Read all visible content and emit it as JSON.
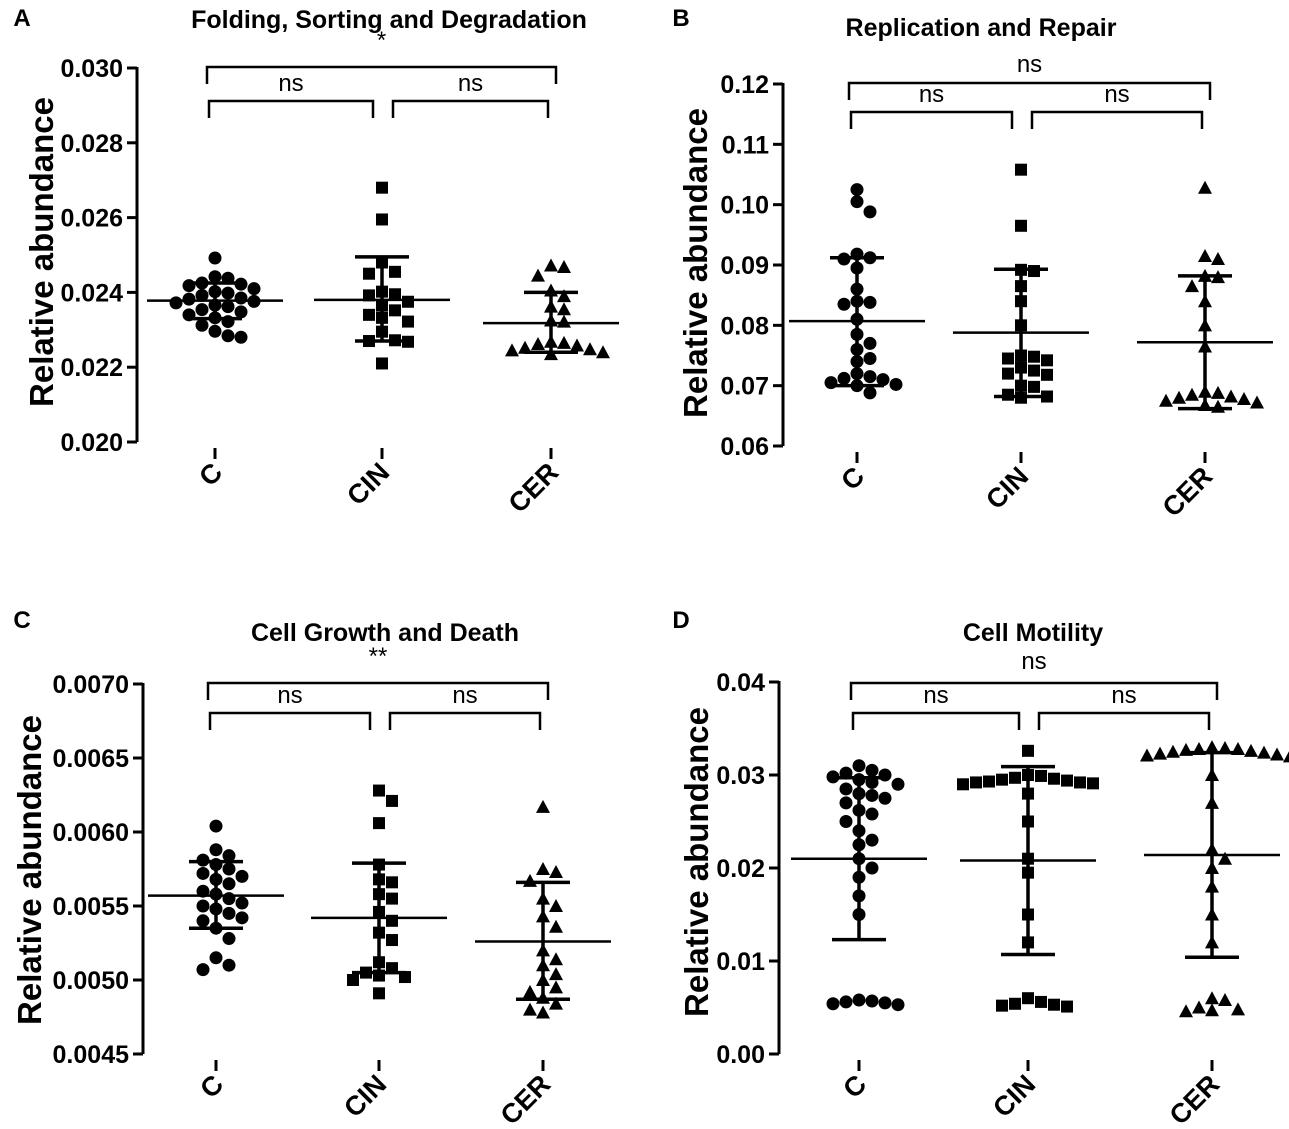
{
  "figure": {
    "panel_letters": [
      "A",
      "B",
      "C",
      "D"
    ]
  },
  "chart_data": [
    {
      "panel": "A",
      "type": "scatter",
      "title": "Folding, Sorting and Degradation",
      "xlabel": "",
      "ylabel": "Relative abundance",
      "categories": [
        "C",
        "CIN",
        "CER"
      ],
      "markers": [
        "circle",
        "square",
        "triangle"
      ],
      "ylim": [
        0.02,
        0.03
      ],
      "yticks": [
        0.02,
        0.022,
        0.024,
        0.026,
        0.028,
        0.03
      ],
      "ytick_labels": [
        "0.020",
        "0.022",
        "0.024",
        "0.026",
        "0.028",
        "0.030"
      ],
      "series": [
        {
          "name": "C",
          "mean": 0.02378,
          "sd_low": 0.0233,
          "sd_high": 0.02425,
          "values": [
            0.02492,
            0.02442,
            0.02438,
            0.02425,
            0.02422,
            0.02418,
            0.0241,
            0.02402,
            0.02398,
            0.02392,
            0.02385,
            0.02382,
            0.02376,
            0.02372,
            0.02366,
            0.02362,
            0.02354,
            0.02348,
            0.0234,
            0.02332,
            0.02322,
            0.02312,
            0.02296,
            0.02284,
            0.0228
          ]
        },
        {
          "name": "CIN",
          "mean": 0.0238,
          "sd_low": 0.0227,
          "sd_high": 0.02495,
          "values": [
            0.0268,
            0.02595,
            0.0248,
            0.02455,
            0.0245,
            0.02402,
            0.02395,
            0.02392,
            0.02375,
            0.02365,
            0.02352,
            0.0234,
            0.02332,
            0.02322,
            0.02295,
            0.02272,
            0.0227,
            0.02268,
            0.0221
          ]
        },
        {
          "name": "CER",
          "mean": 0.02318,
          "sd_low": 0.0224,
          "sd_high": 0.024,
          "values": [
            0.02472,
            0.02468,
            0.02445,
            0.02405,
            0.0239,
            0.02362,
            0.02355,
            0.02325,
            0.02322,
            0.02268,
            0.02265,
            0.02262,
            0.02258,
            0.02252,
            0.02248,
            0.02245,
            0.0224,
            0.02235
          ]
        }
      ],
      "comparisons": [
        {
          "from": "C",
          "to": "CIN",
          "label": "ns"
        },
        {
          "from": "CIN",
          "to": "CER",
          "label": "ns"
        },
        {
          "from": "C",
          "to": "CER",
          "label": "*"
        }
      ]
    },
    {
      "panel": "B",
      "type": "scatter",
      "title": "Replication and Repair",
      "xlabel": "",
      "ylabel": "Relative abundance",
      "categories": [
        "C",
        "CIN",
        "CER"
      ],
      "markers": [
        "circle",
        "square",
        "triangle"
      ],
      "ylim": [
        0.06,
        0.12
      ],
      "yticks": [
        0.06,
        0.07,
        0.08,
        0.09,
        0.1,
        0.11,
        0.12
      ],
      "ytick_labels": [
        "0.06",
        "0.07",
        "0.08",
        "0.09",
        "0.10",
        "0.11",
        "0.12"
      ],
      "series": [
        {
          "name": "C",
          "mean": 0.0807,
          "sd_low": 0.07,
          "sd_high": 0.0912,
          "values": [
            0.1025,
            0.1005,
            0.0988,
            0.0918,
            0.0912,
            0.091,
            0.0895,
            0.086,
            0.084,
            0.0838,
            0.0835,
            0.081,
            0.0785,
            0.077,
            0.076,
            0.0745,
            0.074,
            0.072,
            0.0715,
            0.0712,
            0.071,
            0.0705,
            0.0702,
            0.07,
            0.0688
          ]
        },
        {
          "name": "CIN",
          "mean": 0.0788,
          "sd_low": 0.0682,
          "sd_high": 0.0893,
          "values": [
            0.1058,
            0.0965,
            0.0892,
            0.089,
            0.0865,
            0.084,
            0.08,
            0.075,
            0.0748,
            0.0745,
            0.0742,
            0.073,
            0.0725,
            0.072,
            0.0718,
            0.07,
            0.0698,
            0.0685,
            0.0682,
            0.068
          ]
        },
        {
          "name": "CER",
          "mean": 0.0772,
          "sd_low": 0.0662,
          "sd_high": 0.0882,
          "values": [
            0.1028,
            0.0915,
            0.091,
            0.0882,
            0.088,
            0.0865,
            0.084,
            0.08,
            0.0765,
            0.069,
            0.0688,
            0.0685,
            0.0682,
            0.068,
            0.0678,
            0.0675,
            0.0672,
            0.0668,
            0.0665
          ]
        }
      ],
      "comparisons": [
        {
          "from": "C",
          "to": "CIN",
          "label": "ns"
        },
        {
          "from": "CIN",
          "to": "CER",
          "label": "ns"
        },
        {
          "from": "C",
          "to": "CER",
          "label": "ns"
        }
      ]
    },
    {
      "panel": "C",
      "type": "scatter",
      "title": "Cell Growth and Death",
      "xlabel": "",
      "ylabel": "Relative abundance",
      "categories": [
        "C",
        "CIN",
        "CER"
      ],
      "markers": [
        "circle",
        "square",
        "triangle"
      ],
      "ylim": [
        0.0045,
        0.007
      ],
      "yticks": [
        0.0045,
        0.005,
        0.0055,
        0.006,
        0.0065,
        0.007
      ],
      "ytick_labels": [
        "0.0045",
        "0.0050",
        "0.0055",
        "0.0060",
        "0.0065",
        "0.0070"
      ],
      "series": [
        {
          "name": "C",
          "mean": 0.00557,
          "sd_low": 0.00535,
          "sd_high": 0.0058,
          "values": [
            0.00604,
            0.00588,
            0.00584,
            0.00581,
            0.00578,
            0.00575,
            0.00572,
            0.0057,
            0.00568,
            0.00565,
            0.0056,
            0.00558,
            0.00555,
            0.00552,
            0.0055,
            0.00548,
            0.00545,
            0.00542,
            0.0054,
            0.00535,
            0.00528,
            0.00515,
            0.0051,
            0.00507
          ]
        },
        {
          "name": "CIN",
          "mean": 0.00542,
          "sd_low": 0.00505,
          "sd_high": 0.00579,
          "values": [
            0.00628,
            0.00621,
            0.00606,
            0.00578,
            0.00568,
            0.00566,
            0.00558,
            0.00555,
            0.00546,
            0.0054,
            0.00532,
            0.00527,
            0.00512,
            0.00508,
            0.00505,
            0.00503,
            0.00502,
            0.005,
            0.00491
          ]
        },
        {
          "name": "CER",
          "mean": 0.00526,
          "sd_low": 0.00487,
          "sd_high": 0.00566,
          "values": [
            0.00617,
            0.00575,
            0.00573,
            0.00567,
            0.00555,
            0.0055,
            0.00543,
            0.00536,
            0.0052,
            0.00514,
            0.0051,
            0.00504,
            0.005,
            0.00495,
            0.00492,
            0.00488,
            0.00484,
            0.0048,
            0.00478
          ]
        }
      ],
      "comparisons": [
        {
          "from": "C",
          "to": "CIN",
          "label": "ns"
        },
        {
          "from": "CIN",
          "to": "CER",
          "label": "ns"
        },
        {
          "from": "C",
          "to": "CER",
          "label": "**"
        }
      ]
    },
    {
      "panel": "D",
      "type": "scatter",
      "title": "Cell Motility",
      "xlabel": "",
      "ylabel": "Relative abundance",
      "categories": [
        "C",
        "CIN",
        "CER"
      ],
      "markers": [
        "circle",
        "square",
        "triangle"
      ],
      "ylim": [
        0,
        0.04
      ],
      "yticks": [
        0,
        0.01,
        0.02,
        0.03,
        0.04
      ],
      "ytick_labels": [
        "0.00",
        "0.01",
        "0.02",
        "0.03",
        "0.04"
      ],
      "series": [
        {
          "name": "C",
          "mean": 0.021,
          "sd_low": 0.0123,
          "sd_high": 0.0297,
          "values": [
            0.031,
            0.0305,
            0.0302,
            0.03,
            0.0298,
            0.0295,
            0.0292,
            0.029,
            0.0285,
            0.028,
            0.0278,
            0.0275,
            0.027,
            0.0262,
            0.0258,
            0.025,
            0.024,
            0.023,
            0.0225,
            0.021,
            0.02,
            0.019,
            0.017,
            0.015,
            0.0058,
            0.0057,
            0.0056,
            0.0055,
            0.0054,
            0.0053
          ]
        },
        {
          "name": "CIN",
          "mean": 0.0208,
          "sd_low": 0.0107,
          "sd_high": 0.0309,
          "values": [
            0.0326,
            0.03,
            0.0299,
            0.0297,
            0.0296,
            0.0295,
            0.0294,
            0.0293,
            0.0292,
            0.0292,
            0.0291,
            0.029,
            0.028,
            0.025,
            0.021,
            0.0195,
            0.015,
            0.012,
            0.006,
            0.0056,
            0.0054,
            0.0053,
            0.0052,
            0.0051
          ]
        },
        {
          "name": "CER",
          "mean": 0.0214,
          "sd_low": 0.0104,
          "sd_high": 0.0324,
          "values": [
            0.033,
            0.0329,
            0.0328,
            0.0328,
            0.0327,
            0.0326,
            0.0325,
            0.0324,
            0.0323,
            0.0322,
            0.0321,
            0.032,
            0.03,
            0.027,
            0.022,
            0.021,
            0.02,
            0.018,
            0.015,
            0.012,
            0.006,
            0.0058,
            0.005,
            0.0048,
            0.0047,
            0.0046
          ]
        }
      ],
      "comparisons": [
        {
          "from": "C",
          "to": "CIN",
          "label": "ns"
        },
        {
          "from": "CIN",
          "to": "CER",
          "label": "ns"
        },
        {
          "from": "C",
          "to": "CER",
          "label": "ns"
        }
      ]
    }
  ]
}
